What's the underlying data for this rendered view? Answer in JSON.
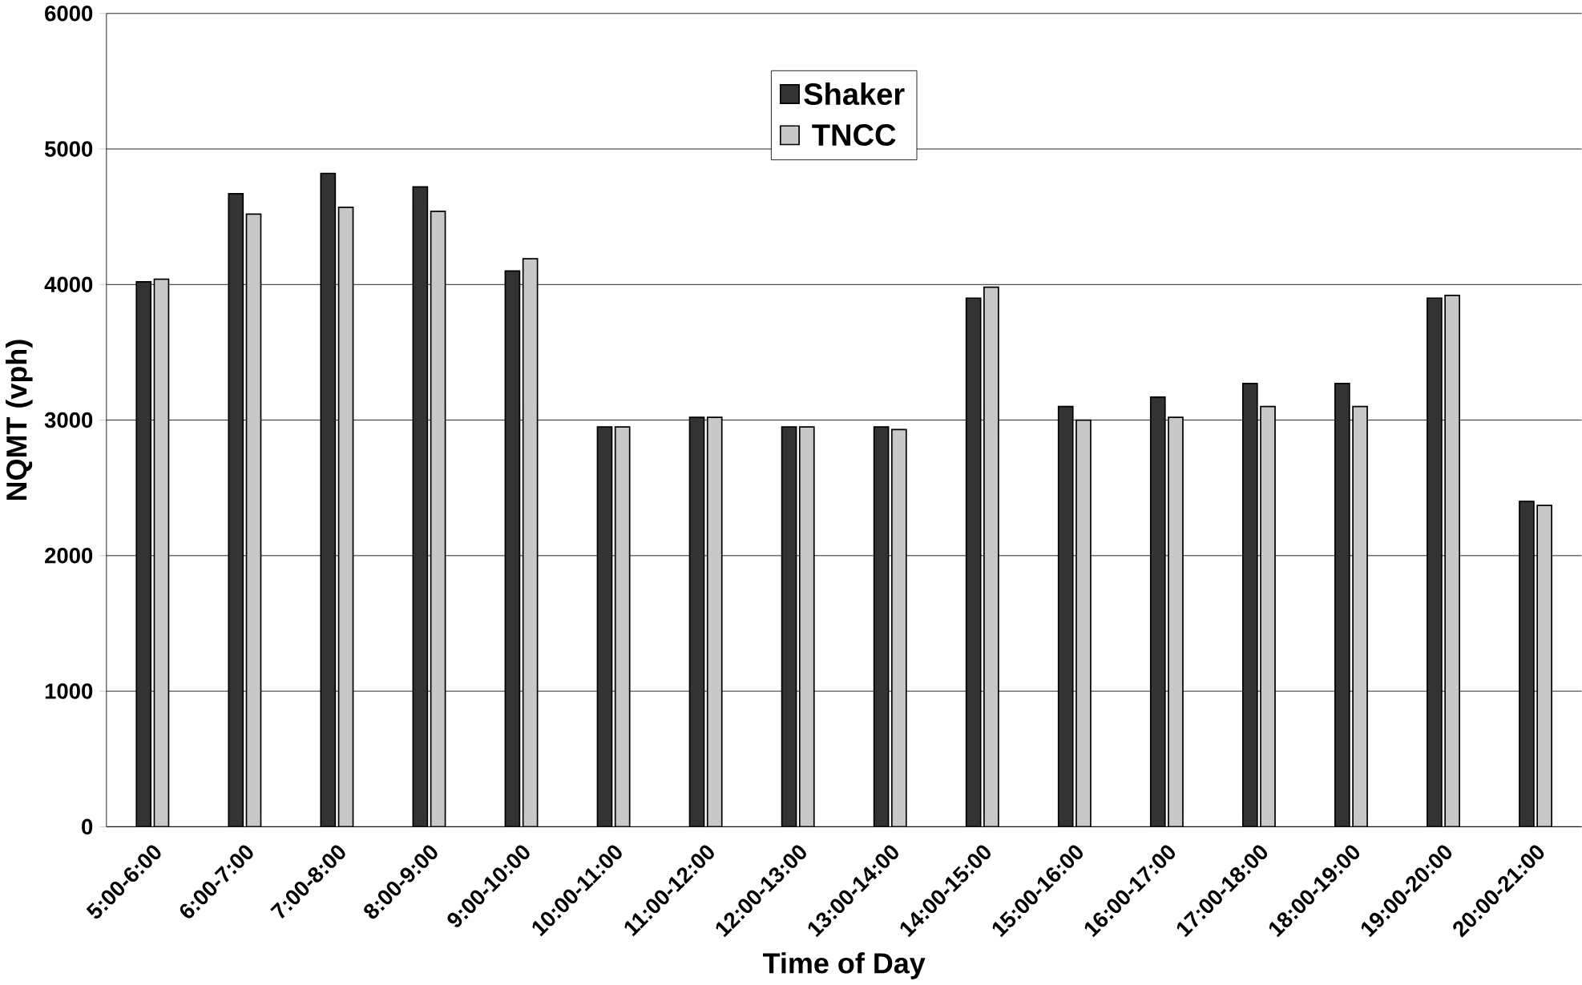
{
  "chart_data": {
    "type": "bar",
    "xlabel": "Time of Day",
    "ylabel": "NQMT (vph)",
    "categories": [
      "5:00-6:00",
      "6:00-7:00",
      "7:00-8:00",
      "8:00-9:00",
      "9:00-10:00",
      "10:00-11:00",
      "11:00-12:00",
      "12:00-13:00",
      "13:00-14:00",
      "14:00-15:00",
      "15:00-16:00",
      "16:00-17:00",
      "17:00-18:00",
      "18:00-19:00",
      "19:00-20:00",
      "20:00-21:00"
    ],
    "series": [
      {
        "name": "Shaker",
        "color": "#333333",
        "values": [
          4020,
          4670,
          4820,
          4720,
          4100,
          2950,
          3020,
          2950,
          2950,
          3900,
          3100,
          3170,
          3270,
          3270,
          3900,
          2400
        ]
      },
      {
        "name": "TNCC",
        "color": "#c8c8c8",
        "values": [
          4040,
          4520,
          4570,
          4540,
          4190,
          2950,
          3020,
          2950,
          2930,
          3980,
          3000,
          3020,
          3100,
          3100,
          3920,
          2370
        ]
      }
    ],
    "ylim": [
      0,
      6000
    ],
    "yticks": [
      0,
      1000,
      2000,
      3000,
      4000,
      5000,
      6000
    ],
    "grid": "y",
    "legend": "top"
  }
}
